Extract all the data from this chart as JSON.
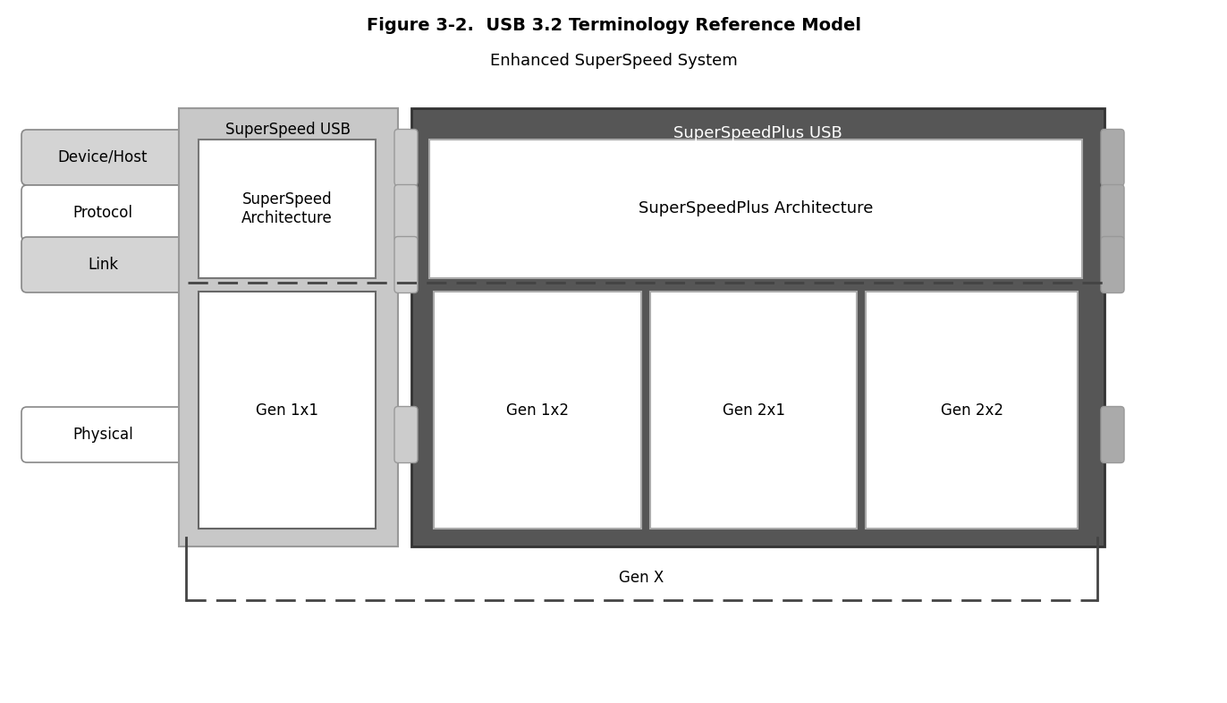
{
  "title": "Figure 3-2.  USB 3.2 Terminology Reference Model",
  "subtitle": "Enhanced SuperSpeed System",
  "title_fontsize": 14,
  "subtitle_fontsize": 13,
  "colors": {
    "white": "#ffffff",
    "label_box_bg_alt": "#d4d4d4",
    "label_box_bg_white": "#ffffff",
    "label_box_border": "#888888",
    "text_dark": "#000000",
    "text_white": "#ffffff",
    "superspeed_bg": "#c8c8c8",
    "superspeedplus_bg": "#565656",
    "dashed_line": "#444444",
    "tab_light": "#b8b8b8",
    "tab_border": "#888888"
  },
  "layer_labels": [
    {
      "label": "Device/Host",
      "alt": true
    },
    {
      "label": "Protocol",
      "alt": false
    },
    {
      "label": "Link",
      "alt": true
    },
    {
      "label": "Physical",
      "alt": false
    }
  ],
  "superspeed_label": "SuperSpeed USB",
  "superspeedplus_label": "SuperSpeedPlus USB",
  "arch_ss_label": "SuperSpeed\nArchitecture",
  "arch_ssp_label": "SuperSpeedPlus Architecture",
  "genx_label": "Gen X",
  "gen1x1_label": "Gen 1x1",
  "gen_ssp_labels": [
    "Gen 1x2",
    "Gen 2x1",
    "Gen 2x2"
  ]
}
